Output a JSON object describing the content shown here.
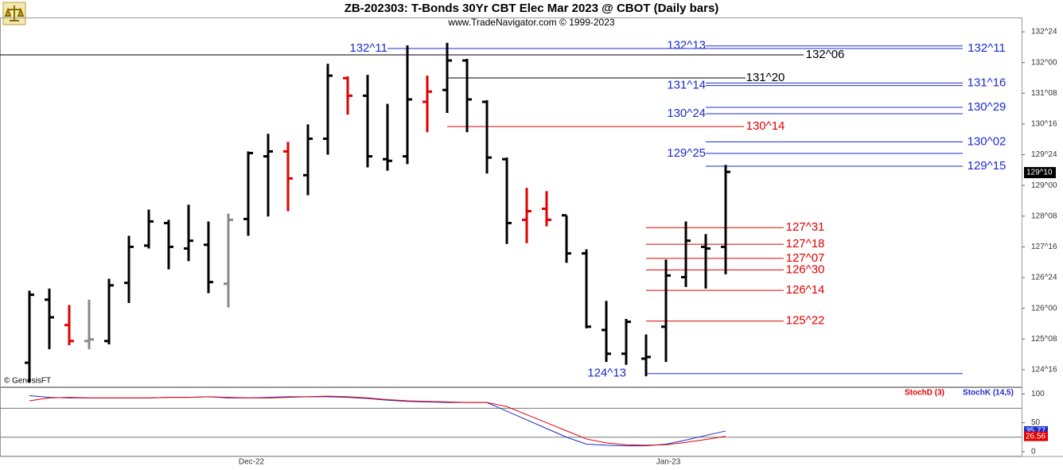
{
  "chart_data": {
    "type": "ohlc",
    "title": "ZB-202303:  T-Bonds 30Yr CBT Elec Mar 2023 @ CBOT  (Daily bars)",
    "subtitle": "www.TradeNavigator.com © 1999-2023",
    "credit": "© GenesisFT",
    "x_axis_labels": [
      "Dec-22",
      "Jan-23"
    ],
    "ylim": [
      124.09,
      133.1
    ],
    "yticks": [
      {
        "value": 132.75,
        "label": "132^24"
      },
      {
        "value": 132,
        "label": "132^00"
      },
      {
        "value": 131.25,
        "label": "131^08"
      },
      {
        "value": 130.5,
        "label": "130^16"
      },
      {
        "value": 129.75,
        "label": "129^24"
      },
      {
        "value": 129,
        "label": "129^00"
      },
      {
        "value": 128.25,
        "label": "128^08"
      },
      {
        "value": 127.5,
        "label": "127^16"
      },
      {
        "value": 126.75,
        "label": "126^24"
      },
      {
        "value": 126,
        "label": "126^00"
      },
      {
        "value": 125.25,
        "label": "125^08"
      },
      {
        "value": 124.5,
        "label": "124^16"
      }
    ],
    "last_price": {
      "value": 129.3125,
      "label": "129^10"
    },
    "open": [
      124.67,
      126.21,
      125.59,
      125.2,
      125.2,
      126.62,
      127.53,
      128.08,
      127.46,
      127.55,
      126.6,
      128.18,
      129.71,
      129.83,
      129.25,
      130.14,
      131.62,
      131.19,
      129.64,
      129.71,
      131.04,
      131.33,
      132.05,
      131.04,
      129.64,
      128.16,
      128.43,
      128.27,
      127.34,
      125.47,
      124.89,
      124.77,
      125.55,
      126.76,
      127.5,
      127.5
    ],
    "high": [
      126.43,
      126.48,
      126.08,
      126.21,
      126.72,
      127.77,
      128.41,
      128.16,
      128.53,
      128.12,
      128.31,
      129.83,
      130.26,
      130.06,
      130.49,
      131.97,
      131.66,
      131.7,
      130.99,
      132.42,
      131.68,
      132.48,
      132.09,
      131.08,
      129.68,
      128.94,
      128.86,
      128.27,
      127.44,
      126.18,
      125.74,
      125.36,
      127.19,
      128.12,
      127.81,
      129.5
    ],
    "low": [
      124.19,
      125.0,
      125.1,
      125.0,
      125.12,
      126.13,
      127.46,
      126.95,
      127.15,
      126.37,
      126.02,
      127.77,
      128.24,
      128.37,
      128.76,
      129.75,
      130.73,
      129.44,
      129.36,
      129.52,
      130.3,
      130.77,
      130.3,
      129.29,
      127.57,
      127.59,
      128.0,
      127.11,
      125.51,
      124.69,
      124.62,
      124.34,
      124.69,
      126.52,
      126.48,
      126.83
    ],
    "close": [
      126.33,
      125.78,
      125.2,
      125.24,
      126.56,
      127.5,
      128.12,
      127.5,
      127.65,
      126.64,
      128.16,
      129.79,
      129.83,
      129.17,
      130.14,
      131.68,
      131.19,
      129.71,
      129.6,
      131.1,
      131.29,
      132.05,
      131.1,
      129.68,
      128.08,
      128.37,
      128.16,
      127.34,
      125.55,
      124.89,
      125.67,
      124.81,
      126.8,
      127.65,
      127.46,
      129.33
    ],
    "bar_colors": [
      "#000",
      "#000",
      "#e00000",
      "#888",
      "#000",
      "#000",
      "#000",
      "#000",
      "#000",
      "#000",
      "#888",
      "#000",
      "#000",
      "#e00000",
      "#000",
      "#000",
      "#e00000",
      "#000",
      "#000",
      "#000",
      "#e00000",
      "#000",
      "#000",
      "#000",
      "#000",
      "#e00000",
      "#e00000",
      "#000",
      "#000",
      "#000",
      "#000",
      "#000",
      "#000",
      "#000",
      "#000",
      "#000"
    ],
    "levels": [
      {
        "label": "132^11",
        "value": 132.34375,
        "color": "#1c2ccf"
      },
      {
        "label": "132^13",
        "value": 132.40625,
        "color": "#1c2ccf"
      },
      {
        "label": "132^11",
        "value": 132.34375,
        "color": "#1c2ccf"
      },
      {
        "label": "132^06",
        "value": 132.1875,
        "color": "#000"
      },
      {
        "label": "131^20",
        "value": 131.625,
        "color": "#000"
      },
      {
        "label": "131^14",
        "value": 131.4375,
        "color": "#1c2ccf"
      },
      {
        "label": "131^16",
        "value": 131.5,
        "color": "#1c2ccf"
      },
      {
        "label": "130^24",
        "value": 130.75,
        "color": "#1c2ccf"
      },
      {
        "label": "130^29",
        "value": 130.90625,
        "color": "#1c2ccf"
      },
      {
        "label": "130^14",
        "value": 130.4375,
        "color": "#e00000"
      },
      {
        "label": "130^02",
        "value": 130.0625,
        "color": "#1c2ccf"
      },
      {
        "label": "129^25",
        "value": 129.78125,
        "color": "#1c2ccf"
      },
      {
        "label": "129^15",
        "value": 129.46875,
        "color": "#1c2ccf"
      },
      {
        "label": "127^31",
        "value": 127.96875,
        "color": "#e00000"
      },
      {
        "label": "127^18",
        "value": 127.5625,
        "color": "#e00000"
      },
      {
        "label": "127^07",
        "value": 127.21875,
        "color": "#e00000"
      },
      {
        "label": "126^30",
        "value": 126.9375,
        "color": "#e00000"
      },
      {
        "label": "126^14",
        "value": 126.4375,
        "color": "#e00000"
      },
      {
        "label": "125^22",
        "value": 125.6875,
        "color": "#e00000"
      },
      {
        "label": "124^13",
        "value": 124.40625,
        "color": "#1c2ccf"
      }
    ],
    "indicator": {
      "ylim": [
        -7,
        110
      ],
      "yticks": [
        0,
        50,
        100
      ],
      "guides": [
        75,
        25
      ],
      "series": [
        {
          "name": "StochK (14,5)",
          "color": "#1c2ccf",
          "values": [
            97,
            94,
            93,
            93,
            93,
            93,
            93,
            94,
            94,
            95,
            93,
            93,
            94,
            95,
            95,
            95,
            94,
            92,
            89,
            87,
            86,
            85,
            85,
            85,
            70,
            55,
            40,
            25,
            13,
            11,
            10,
            10,
            13,
            20,
            28,
            35.77
          ]
        },
        {
          "name": "StochD (3)",
          "color": "#e00000",
          "values": [
            88,
            93,
            94,
            93,
            93,
            93,
            93,
            94,
            94,
            95,
            94,
            93,
            93,
            94,
            95,
            96,
            95,
            93,
            90,
            88,
            87,
            86,
            85,
            85,
            78,
            64,
            50,
            36,
            22,
            15,
            12,
            11,
            12,
            16,
            21,
            26.56
          ]
        }
      ]
    }
  }
}
